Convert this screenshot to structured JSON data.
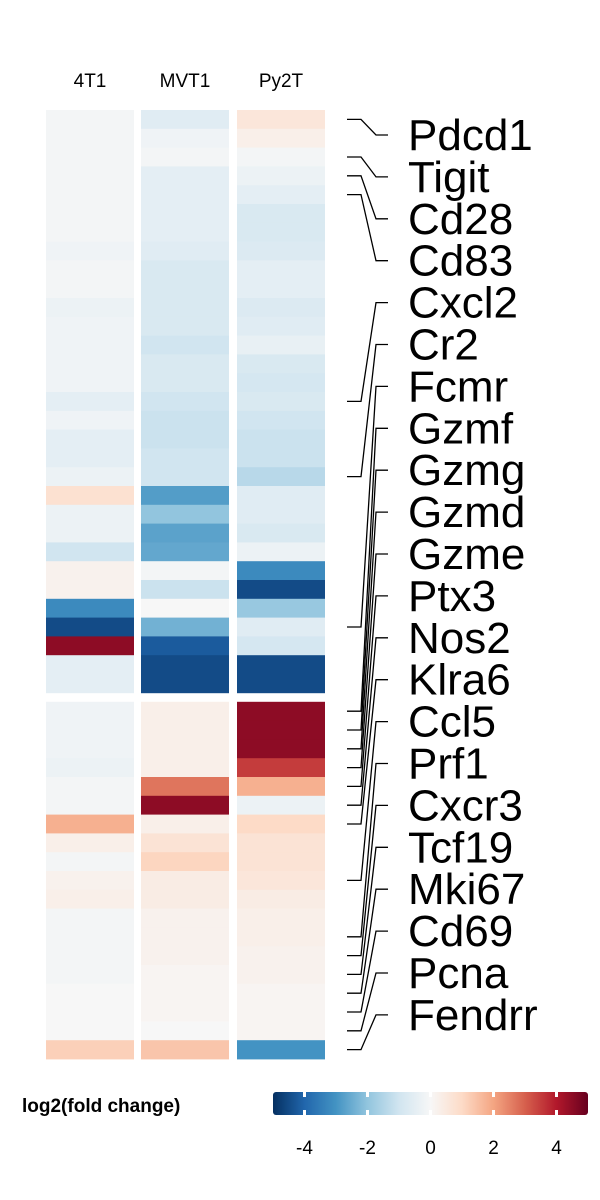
{
  "chart_data": {
    "type": "heatmap",
    "columns": [
      "4T1",
      "MVT1",
      "Py2T"
    ],
    "gene_labels": [
      {
        "name": "Pdcd1",
        "row": 0
      },
      {
        "name": "Tigit",
        "row": 2
      },
      {
        "name": "Cd28",
        "row": 3
      },
      {
        "name": "Cd83",
        "row": 4
      },
      {
        "name": "Cxcl2",
        "row": 15
      },
      {
        "name": "Cr2",
        "row": 19
      },
      {
        "name": "Fcmr",
        "row": 27
      },
      {
        "name": "Gzmf",
        "row": 31
      },
      {
        "name": "Gzmg",
        "row": 32
      },
      {
        "name": "Gzmd",
        "row": 33
      },
      {
        "name": "Gzme",
        "row": 34
      },
      {
        "name": "Ptx3",
        "row": 35
      },
      {
        "name": "Nos2",
        "row": 36
      },
      {
        "name": "Klra6",
        "row": 37
      },
      {
        "name": "Ccl5",
        "row": 40
      },
      {
        "name": "Prf1",
        "row": 43
      },
      {
        "name": "Cxcr3",
        "row": 44
      },
      {
        "name": "Tcf19",
        "row": 45
      },
      {
        "name": "Mki67",
        "row": 46
      },
      {
        "name": "Cd69",
        "row": 47
      },
      {
        "name": "Pcna",
        "row": 48
      },
      {
        "name": "Fendrr",
        "row": 49
      }
    ],
    "matrix": [
      [
        -0.1,
        -0.6,
        0.6
      ],
      [
        -0.1,
        -0.2,
        0.3
      ],
      [
        -0.1,
        -0.1,
        -0.1
      ],
      [
        -0.1,
        -0.5,
        -0.3
      ],
      [
        -0.1,
        -0.5,
        -0.5
      ],
      [
        -0.1,
        -0.5,
        -0.8
      ],
      [
        -0.1,
        -0.5,
        -0.8
      ],
      [
        -0.2,
        -0.6,
        -0.7
      ],
      [
        -0.1,
        -0.8,
        -0.5
      ],
      [
        -0.1,
        -0.8,
        -0.5
      ],
      [
        -0.3,
        -0.8,
        -0.7
      ],
      [
        -0.2,
        -0.8,
        -0.6
      ],
      [
        -0.2,
        -1.0,
        -0.4
      ],
      [
        -0.2,
        -0.8,
        -0.8
      ],
      [
        -0.2,
        -0.8,
        -0.9
      ],
      [
        -0.5,
        -1.0,
        -0.8
      ],
      [
        -0.2,
        -1.1,
        -1.0
      ],
      [
        -0.5,
        -1.1,
        -1.1
      ],
      [
        -0.5,
        -1.0,
        -1.1
      ],
      [
        -0.3,
        -1.0,
        -1.4
      ],
      [
        0.8,
        -2.8,
        -0.6
      ],
      [
        -0.3,
        -2.0,
        -0.6
      ],
      [
        -0.3,
        -2.7,
        -0.8
      ],
      [
        -1.0,
        -2.6,
        -0.3
      ],
      [
        0.2,
        -0.1,
        -3.2
      ],
      [
        0.2,
        -1.1,
        -4.5
      ],
      [
        -3.2,
        0.0,
        -1.9
      ],
      [
        -4.5,
        -2.4,
        -0.6
      ],
      [
        4.5,
        -4.2,
        -0.9
      ],
      [
        -0.5,
        -4.5,
        -4.5
      ],
      [
        -0.5,
        -4.5,
        -4.5
      ],
      [
        -0.2,
        0.3,
        4.5
      ],
      [
        -0.2,
        0.3,
        4.5
      ],
      [
        -0.2,
        0.3,
        4.5
      ],
      [
        -0.3,
        0.3,
        3.5
      ],
      [
        -0.1,
        2.7,
        1.8
      ],
      [
        -0.1,
        4.5,
        -0.3
      ],
      [
        1.8,
        0.3,
        1.0
      ],
      [
        0.3,
        0.7,
        0.7
      ],
      [
        -0.1,
        1.1,
        0.7
      ],
      [
        0.2,
        0.4,
        0.6
      ],
      [
        0.3,
        0.4,
        0.4
      ],
      [
        -0.1,
        0.2,
        0.3
      ],
      [
        -0.1,
        0.2,
        0.3
      ],
      [
        -0.1,
        0.2,
        0.2
      ],
      [
        -0.1,
        0.1,
        0.2
      ],
      [
        0.0,
        0.1,
        0.1
      ],
      [
        0.0,
        0.1,
        0.1
      ],
      [
        0.0,
        0.0,
        0.1
      ],
      [
        1.2,
        1.4,
        -3.0
      ]
    ],
    "row_split": [
      31
    ],
    "legend": {
      "title": "log2(fold change)",
      "ticks": [
        -4,
        -2,
        0,
        2,
        4
      ],
      "range": [
        -5,
        5
      ],
      "colors": [
        "#053061",
        "#2166ac",
        "#4393c3",
        "#92c5de",
        "#d1e5f0",
        "#f7f7f7",
        "#fddbc7",
        "#f4a582",
        "#d6604d",
        "#b2182b",
        "#67001f"
      ]
    }
  }
}
